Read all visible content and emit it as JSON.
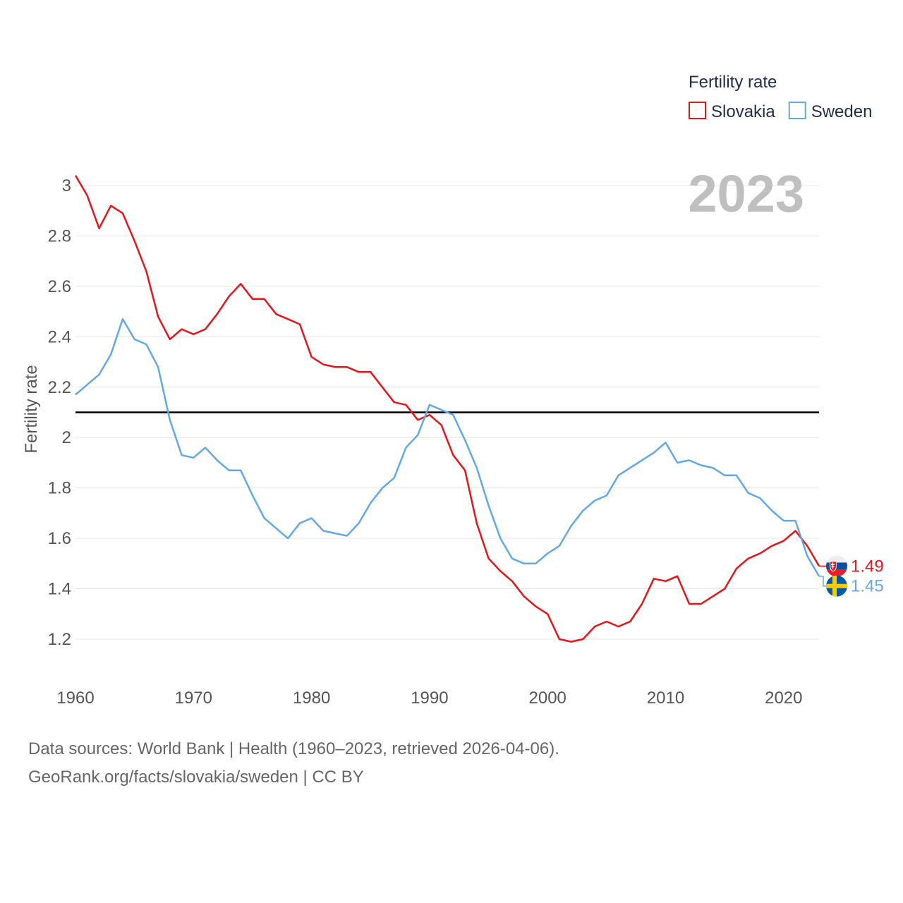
{
  "legend": {
    "title": "Fertility rate"
  },
  "source": {
    "line1": "Data sources: World Bank | Health (1960–2023, retrieved 2026-04-06).",
    "line2": "GeoRank.org/facts/slovakia/sweden | CC BY"
  },
  "chart_data": {
    "type": "line",
    "title": "",
    "year_label": "2023",
    "xlabel": "",
    "ylabel": "Fertility rate",
    "xlim": [
      1960,
      2023
    ],
    "ylim": [
      1.1,
      3.1
    ],
    "x_ticks": [
      1960,
      1970,
      1980,
      1990,
      2000,
      2010,
      2020
    ],
    "y_ticks": [
      1.2,
      1.4,
      1.6,
      1.8,
      2,
      2.2,
      2.4,
      2.6,
      2.8,
      3
    ],
    "reference_line": {
      "y": 2.1,
      "color": "#000000"
    },
    "legend_position": "top-right",
    "x": [
      1960,
      1961,
      1962,
      1963,
      1964,
      1965,
      1966,
      1967,
      1968,
      1969,
      1970,
      1971,
      1972,
      1973,
      1974,
      1975,
      1976,
      1977,
      1978,
      1979,
      1980,
      1981,
      1982,
      1983,
      1984,
      1985,
      1986,
      1987,
      1988,
      1989,
      1990,
      1991,
      1992,
      1993,
      1994,
      1995,
      1996,
      1997,
      1998,
      1999,
      2000,
      2001,
      2002,
      2003,
      2004,
      2005,
      2006,
      2007,
      2008,
      2009,
      2010,
      2011,
      2012,
      2013,
      2014,
      2015,
      2016,
      2017,
      2018,
      2019,
      2020,
      2021,
      2022,
      2023
    ],
    "series": [
      {
        "name": "Slovakia",
        "color": "#e8141a",
        "end_label": "1.49",
        "values": [
          3.04,
          2.96,
          2.83,
          2.92,
          2.89,
          2.78,
          2.66,
          2.48,
          2.39,
          2.43,
          2.41,
          2.43,
          2.49,
          2.56,
          2.61,
          2.55,
          2.55,
          2.49,
          2.47,
          2.45,
          2.32,
          2.29,
          2.28,
          2.28,
          2.26,
          2.26,
          2.2,
          2.14,
          2.13,
          2.07,
          2.09,
          2.05,
          1.93,
          1.87,
          1.66,
          1.52,
          1.47,
          1.43,
          1.37,
          1.33,
          1.3,
          1.2,
          1.19,
          1.2,
          1.25,
          1.27,
          1.25,
          1.27,
          1.34,
          1.44,
          1.43,
          1.45,
          1.34,
          1.34,
          1.37,
          1.4,
          1.48,
          1.52,
          1.54,
          1.57,
          1.59,
          1.63,
          1.57,
          1.49
        ]
      },
      {
        "name": "Sweden",
        "color": "#63a8e6",
        "end_label": "1.45",
        "values": [
          2.17,
          2.21,
          2.25,
          2.33,
          2.47,
          2.39,
          2.37,
          2.28,
          2.07,
          1.93,
          1.92,
          1.96,
          1.91,
          1.87,
          1.87,
          1.77,
          1.68,
          1.64,
          1.6,
          1.66,
          1.68,
          1.63,
          1.62,
          1.61,
          1.66,
          1.74,
          1.8,
          1.84,
          1.96,
          2.01,
          2.13,
          2.11,
          2.09,
          1.99,
          1.88,
          1.73,
          1.6,
          1.52,
          1.5,
          1.5,
          1.54,
          1.57,
          1.65,
          1.71,
          1.75,
          1.77,
          1.85,
          1.88,
          1.91,
          1.94,
          1.98,
          1.9,
          1.91,
          1.89,
          1.88,
          1.85,
          1.85,
          1.78,
          1.76,
          1.71,
          1.67,
          1.67,
          1.53,
          1.45
        ]
      }
    ]
  }
}
